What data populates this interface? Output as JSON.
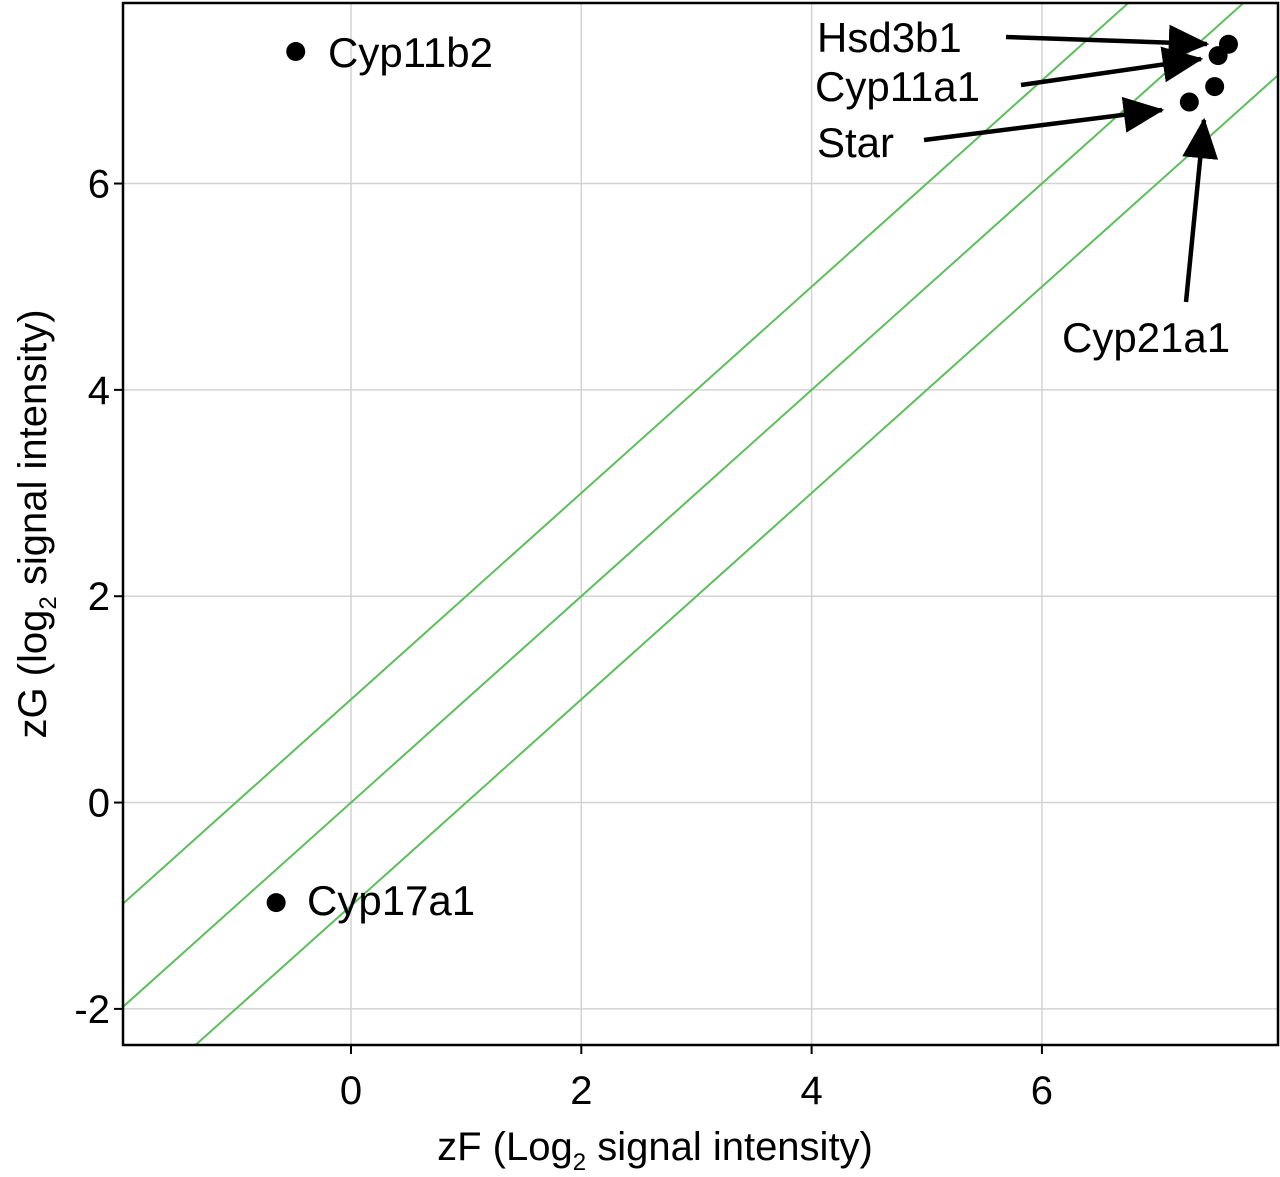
{
  "chart_data": {
    "type": "scatter",
    "xlabel": {
      "prefix": "zF (Log",
      "subscript": "2",
      "suffix": " signal intensity)"
    },
    "ylabel": {
      "prefix": "zG (log",
      "subscript": "2",
      "suffix": " signal intensity)"
    },
    "xlim": [
      -1.98,
      8.05
    ],
    "ylim": [
      -2.35,
      7.75
    ],
    "xticks": [
      {
        "value": 0,
        "label": "0"
      },
      {
        "value": 2,
        "label": "2"
      },
      {
        "value": 4,
        "label": "4"
      },
      {
        "value": 6,
        "label": "6"
      }
    ],
    "yticks": [
      {
        "value": -2,
        "label": "-2"
      },
      {
        "value": 0,
        "label": "0"
      },
      {
        "value": 2,
        "label": "2"
      },
      {
        "value": 4,
        "label": "4"
      },
      {
        "value": 6,
        "label": "6"
      }
    ],
    "grid": true,
    "reference_lines": [
      {
        "slope": 1,
        "intercept": 1,
        "color": "#5cbf5c"
      },
      {
        "slope": 1,
        "intercept": 0,
        "color": "#5cbf5c"
      },
      {
        "slope": 1,
        "intercept": -1,
        "color": "#5cbf5c"
      }
    ],
    "points": [
      {
        "name": "Cyp11b2",
        "x": -0.48,
        "y": 7.28
      },
      {
        "name": "Cyp17a1",
        "x": -0.65,
        "y": -0.97
      },
      {
        "name": "Hsd3b1",
        "x": 7.62,
        "y": 7.35
      },
      {
        "name": "Cyp11a1",
        "x": 7.53,
        "y": 7.24
      },
      {
        "name": "Star",
        "x": 7.28,
        "y": 6.79
      },
      {
        "name": "Cyp21a1",
        "x": 7.5,
        "y": 6.94
      }
    ],
    "annotations": [
      {
        "point": "Cyp11b2",
        "text": "Cyp11b2",
        "arrow": false
      },
      {
        "point": "Cyp17a1",
        "text": "Cyp17a1",
        "arrow": false
      },
      {
        "point": "Hsd3b1",
        "text": "Hsd3b1",
        "arrow": true
      },
      {
        "point": "Cyp11a1",
        "text": "Cyp11a1",
        "arrow": true
      },
      {
        "point": "Star",
        "text": "Star",
        "arrow": true
      },
      {
        "point": "Cyp21a1",
        "text": "Cyp21a1",
        "arrow": true
      }
    ],
    "colors": {
      "grid": "#d3d3d3",
      "points": "#000000",
      "frame": "#000000"
    }
  }
}
